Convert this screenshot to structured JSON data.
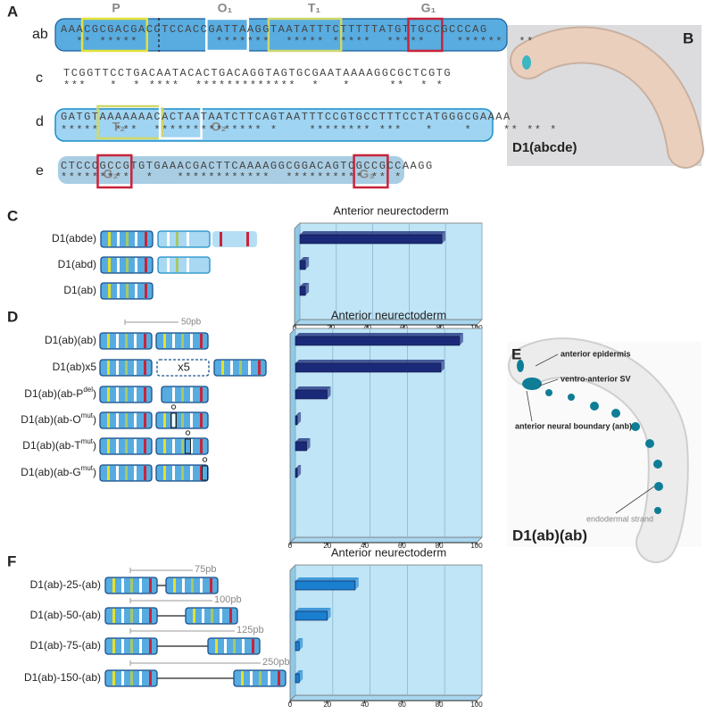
{
  "panel_labels": [
    "A",
    "B",
    "C",
    "D",
    "E",
    "F"
  ],
  "sequences": {
    "motifs": [
      "P",
      "O₁",
      "T₁",
      "G₁",
      "T₂",
      "O₂",
      "G₂",
      "G₃"
    ],
    "rows": [
      {
        "label": "ab",
        "sequence": "AAACGCGACGACCTCCACCGATTAAGGTAATATTTCTTTTTATGTTGCCGCCCAG",
        "conservation": "  ** *****          *******  ***** *****  *****    ******  **"
      },
      {
        "label": "c",
        "sequence": "TCGGTTCCTGACAATACACTGACAGGTAGTGCGAATAAAAGGCGCTCGTG",
        "conservation": "***   *  * ****  *************  *   *     **  * *"
      },
      {
        "label": "d",
        "sequence": "GATGTAAAAAAACACTAATAATCTTCAGTAATTTCCGTGCCTTTCCTATGGGCGAAAA",
        "conservation": "*****  ***  ************** *    ******** ***   *    *    ** ** *"
      },
      {
        "label": "e",
        "sequence": "CTCCCGCCGTGTGAAACGACTTCAAAAGGCGGACAGTCGCCGCCAAGG",
        "conservation": "*********  *   ************  ********** ** *"
      }
    ]
  },
  "images": {
    "B": {
      "caption": "D1(abcde)"
    },
    "E": {
      "caption": "D1(ab)(ab)",
      "annotations": [
        "anterior epidermis",
        "ventro-anterior SV",
        "anterior neural boundary (anb)",
        "endodermal strand"
      ]
    }
  },
  "constructs": {
    "D_distance": "50pb",
    "D_repeat": "x5",
    "F_distances": [
      "75pb",
      "100pb",
      "125pb",
      "250pb"
    ]
  },
  "chart_data": [
    {
      "type": "bar",
      "orientation": "horizontal",
      "title": "Anterior neurectoderm",
      "categories": [
        "D1(abde)",
        "D1(abd)",
        "D1(ab)"
      ],
      "values": [
        78,
        3,
        3
      ],
      "color": "#1b2a78",
      "xlim": [
        0,
        100
      ],
      "xticks": [
        0,
        20,
        40,
        60,
        80,
        100
      ],
      "grid": true
    },
    {
      "type": "bar",
      "orientation": "horizontal",
      "title": "Anterior neurectoderm",
      "categories": [
        "D1(ab)(ab)",
        "D1(ab)x5",
        [
          "D1(ab)(ab-P",
          "del",
          ")"
        ],
        [
          "D1(ab)(ab-O",
          "mut",
          ")"
        ],
        [
          "D1(ab)(ab-T",
          "mut",
          ")"
        ],
        [
          "D1(ab)(ab-G",
          "mut",
          ")"
        ]
      ],
      "values": [
        88,
        78,
        17,
        1,
        6,
        1
      ],
      "color": "#1b2a78",
      "xlim": [
        0,
        100
      ],
      "xticks": [
        0,
        20,
        40,
        60,
        80,
        100
      ],
      "grid": true
    },
    {
      "type": "bar",
      "orientation": "horizontal",
      "title": "Anterior neurectoderm",
      "categories": [
        "D1(ab)-25-(ab)",
        "D1(ab)-50-(ab)",
        "D1(ab)-75-(ab)",
        "D1(ab)-150-(ab)"
      ],
      "values": [
        32,
        17,
        2,
        2
      ],
      "color": "#1a7fcf",
      "xlim": [
        0,
        100
      ],
      "xticks": [
        0,
        20,
        40,
        60,
        80,
        100
      ],
      "grid": true
    }
  ]
}
